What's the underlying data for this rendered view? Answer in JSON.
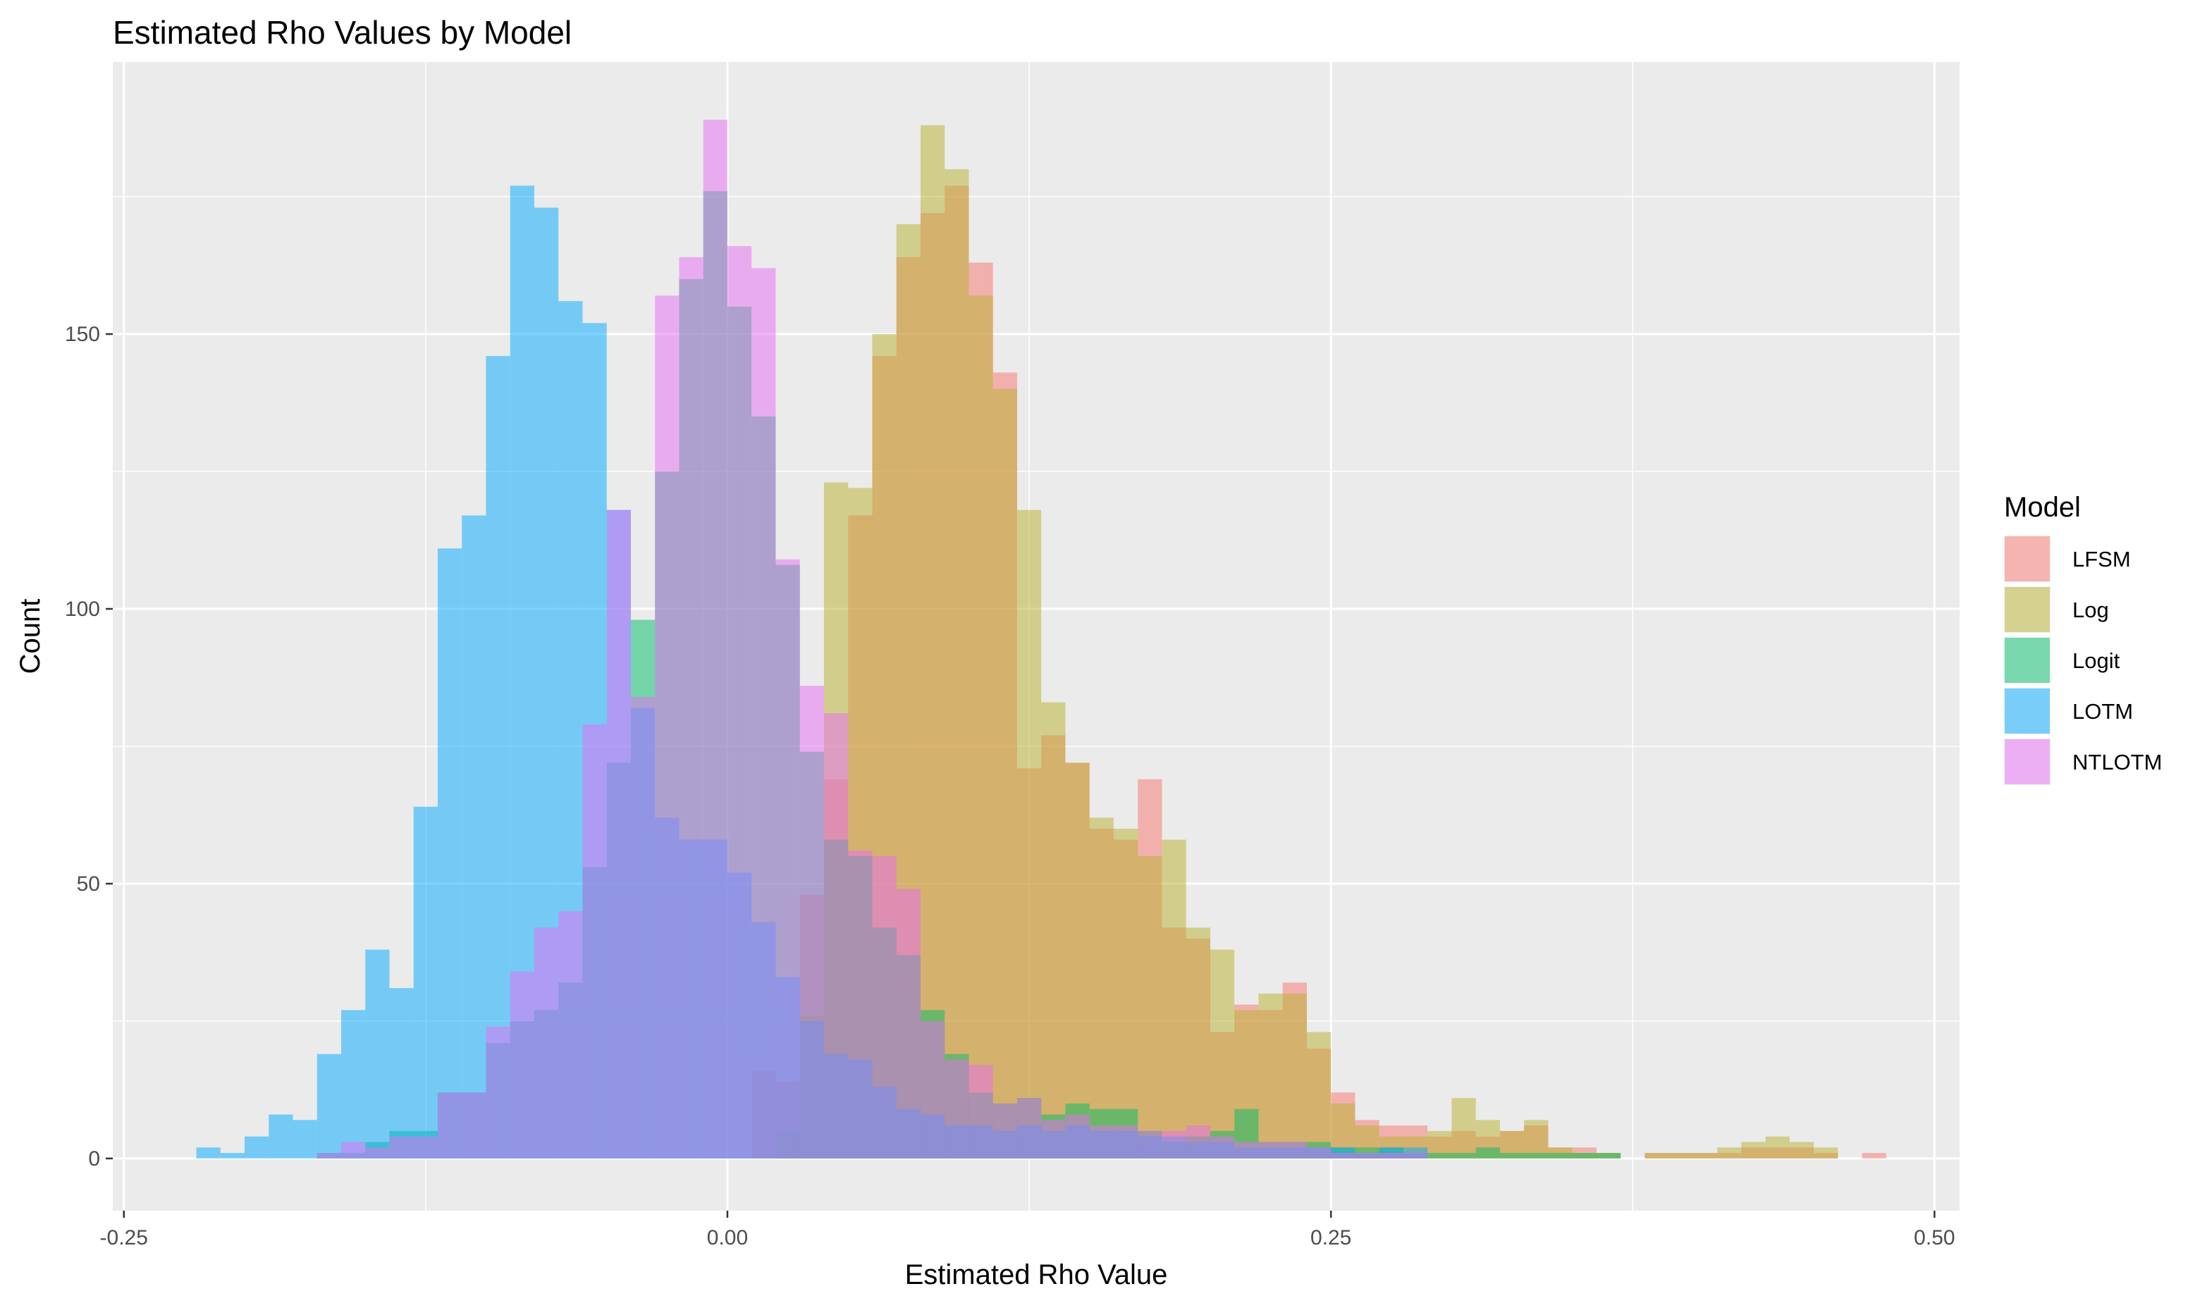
{
  "chart_data": {
    "type": "histogram",
    "title": "Estimated Rho Values by Model",
    "xlabel": "Estimated Rho Value",
    "ylabel": "Count",
    "xlim": [
      -0.2546,
      0.5104
    ],
    "ylim": [
      -9.5,
      199.5
    ],
    "x_ticks": [
      -0.25,
      0.0,
      0.25,
      0.5
    ],
    "x_tick_labels": [
      "-0.25",
      "0.00",
      "0.25",
      "0.50"
    ],
    "y_ticks": [
      0,
      50,
      100,
      150
    ],
    "y_tick_labels": [
      "0",
      "50",
      "100",
      "150"
    ],
    "bin_width": 0.01,
    "grid": true,
    "legend": {
      "title": "Model",
      "position": "right"
    },
    "series": [
      {
        "name": "LFSM",
        "color": "#F8766D",
        "bins": [
          [
            0.015,
            16
          ],
          [
            0.025,
            14
          ],
          [
            0.035,
            48
          ],
          [
            0.045,
            69
          ],
          [
            0.055,
            117
          ],
          [
            0.065,
            146
          ],
          [
            0.075,
            164
          ],
          [
            0.085,
            172
          ],
          [
            0.095,
            177
          ],
          [
            0.105,
            163
          ],
          [
            0.115,
            143
          ],
          [
            0.125,
            71
          ],
          [
            0.135,
            77
          ],
          [
            0.145,
            72
          ],
          [
            0.155,
            60
          ],
          [
            0.165,
            58
          ],
          [
            0.175,
            69
          ],
          [
            0.185,
            42
          ],
          [
            0.195,
            40
          ],
          [
            0.205,
            23
          ],
          [
            0.215,
            28
          ],
          [
            0.225,
            27
          ],
          [
            0.235,
            32
          ],
          [
            0.245,
            20
          ],
          [
            0.255,
            12
          ],
          [
            0.265,
            7
          ],
          [
            0.275,
            6
          ],
          [
            0.285,
            6
          ],
          [
            0.295,
            4
          ],
          [
            0.305,
            5
          ],
          [
            0.315,
            4
          ],
          [
            0.325,
            5
          ],
          [
            0.335,
            6
          ],
          [
            0.345,
            2
          ],
          [
            0.355,
            2
          ],
          [
            0.365,
            1
          ],
          [
            0.385,
            1
          ],
          [
            0.395,
            1
          ],
          [
            0.405,
            1
          ],
          [
            0.415,
            1
          ],
          [
            0.425,
            2
          ],
          [
            0.435,
            2
          ],
          [
            0.445,
            2
          ],
          [
            0.455,
            1
          ],
          [
            0.475,
            1
          ]
        ]
      },
      {
        "name": "Log",
        "color": "#B7B22E",
        "bins": [
          [
            0.025,
            5
          ],
          [
            0.035,
            26
          ],
          [
            0.045,
            123
          ],
          [
            0.055,
            122
          ],
          [
            0.065,
            150
          ],
          [
            0.075,
            170
          ],
          [
            0.085,
            188
          ],
          [
            0.095,
            180
          ],
          [
            0.105,
            157
          ],
          [
            0.115,
            140
          ],
          [
            0.125,
            118
          ],
          [
            0.135,
            83
          ],
          [
            0.145,
            72
          ],
          [
            0.155,
            62
          ],
          [
            0.165,
            60
          ],
          [
            0.175,
            55
          ],
          [
            0.185,
            58
          ],
          [
            0.195,
            42
          ],
          [
            0.205,
            38
          ],
          [
            0.215,
            27
          ],
          [
            0.225,
            30
          ],
          [
            0.235,
            30
          ],
          [
            0.245,
            23
          ],
          [
            0.255,
            10
          ],
          [
            0.265,
            6
          ],
          [
            0.275,
            4
          ],
          [
            0.285,
            4
          ],
          [
            0.295,
            5
          ],
          [
            0.305,
            11
          ],
          [
            0.315,
            7
          ],
          [
            0.325,
            5
          ],
          [
            0.335,
            7
          ],
          [
            0.345,
            2
          ],
          [
            0.355,
            1
          ],
          [
            0.365,
            1
          ],
          [
            0.385,
            1
          ],
          [
            0.395,
            1
          ],
          [
            0.405,
            1
          ],
          [
            0.415,
            2
          ],
          [
            0.425,
            3
          ],
          [
            0.435,
            4
          ],
          [
            0.445,
            3
          ],
          [
            0.455,
            2
          ]
        ]
      },
      {
        "name": "Logit",
        "color": "#00BE67",
        "bins": [
          [
            -0.165,
            1
          ],
          [
            -0.155,
            1
          ],
          [
            -0.145,
            3
          ],
          [
            -0.135,
            5
          ],
          [
            -0.125,
            5
          ],
          [
            -0.115,
            12
          ],
          [
            -0.105,
            12
          ],
          [
            -0.095,
            21
          ],
          [
            -0.085,
            25
          ],
          [
            -0.075,
            27
          ],
          [
            -0.065,
            32
          ],
          [
            -0.055,
            53
          ],
          [
            -0.045,
            72
          ],
          [
            -0.035,
            98
          ],
          [
            -0.025,
            125
          ],
          [
            -0.015,
            160
          ],
          [
            -0.005,
            176
          ],
          [
            0.005,
            155
          ],
          [
            0.015,
            135
          ],
          [
            0.025,
            108
          ],
          [
            0.035,
            74
          ],
          [
            0.045,
            58
          ],
          [
            0.055,
            55
          ],
          [
            0.065,
            42
          ],
          [
            0.075,
            37
          ],
          [
            0.085,
            27
          ],
          [
            0.095,
            19
          ],
          [
            0.105,
            12
          ],
          [
            0.115,
            10
          ],
          [
            0.125,
            11
          ],
          [
            0.135,
            8
          ],
          [
            0.145,
            10
          ],
          [
            0.155,
            9
          ],
          [
            0.165,
            9
          ],
          [
            0.175,
            5
          ],
          [
            0.185,
            3
          ],
          [
            0.195,
            4
          ],
          [
            0.205,
            5
          ],
          [
            0.215,
            9
          ],
          [
            0.225,
            3
          ],
          [
            0.235,
            3
          ],
          [
            0.245,
            3
          ],
          [
            0.255,
            2
          ],
          [
            0.265,
            2
          ],
          [
            0.275,
            2
          ],
          [
            0.285,
            1
          ],
          [
            0.295,
            1
          ],
          [
            0.305,
            1
          ],
          [
            0.315,
            2
          ],
          [
            0.325,
            1
          ],
          [
            0.335,
            1
          ],
          [
            0.345,
            1
          ],
          [
            0.355,
            1
          ],
          [
            0.365,
            1
          ]
        ]
      },
      {
        "name": "LOTM",
        "color": "#00A9FF",
        "bins": [
          [
            -0.215,
            2
          ],
          [
            -0.205,
            1
          ],
          [
            -0.195,
            4
          ],
          [
            -0.185,
            8
          ],
          [
            -0.175,
            7
          ],
          [
            -0.165,
            19
          ],
          [
            -0.155,
            27
          ],
          [
            -0.145,
            38
          ],
          [
            -0.135,
            31
          ],
          [
            -0.125,
            64
          ],
          [
            -0.115,
            111
          ],
          [
            -0.105,
            117
          ],
          [
            -0.095,
            146
          ],
          [
            -0.085,
            177
          ],
          [
            -0.075,
            173
          ],
          [
            -0.065,
            156
          ],
          [
            -0.055,
            152
          ],
          [
            -0.045,
            118
          ],
          [
            -0.035,
            82
          ],
          [
            -0.025,
            62
          ],
          [
            -0.015,
            58
          ],
          [
            -0.005,
            58
          ],
          [
            0.005,
            52
          ],
          [
            0.015,
            43
          ],
          [
            0.025,
            33
          ],
          [
            0.035,
            25
          ],
          [
            0.045,
            19
          ],
          [
            0.055,
            18
          ],
          [
            0.065,
            13
          ],
          [
            0.075,
            9
          ],
          [
            0.085,
            8
          ],
          [
            0.095,
            6
          ],
          [
            0.105,
            6
          ],
          [
            0.115,
            5
          ],
          [
            0.125,
            6
          ],
          [
            0.135,
            5
          ],
          [
            0.145,
            6
          ],
          [
            0.155,
            5
          ],
          [
            0.165,
            5
          ],
          [
            0.175,
            4
          ],
          [
            0.185,
            4
          ],
          [
            0.195,
            3
          ],
          [
            0.205,
            3
          ],
          [
            0.215,
            2
          ],
          [
            0.225,
            2
          ],
          [
            0.235,
            2
          ],
          [
            0.245,
            2
          ],
          [
            0.255,
            2
          ],
          [
            0.265,
            1
          ],
          [
            0.275,
            2
          ],
          [
            0.285,
            2
          ]
        ]
      },
      {
        "name": "NTLOTM",
        "color": "#E76BF3",
        "bins": [
          [
            -0.165,
            1
          ],
          [
            -0.155,
            3
          ],
          [
            -0.145,
            2
          ],
          [
            -0.135,
            4
          ],
          [
            -0.125,
            4
          ],
          [
            -0.115,
            12
          ],
          [
            -0.105,
            12
          ],
          [
            -0.095,
            24
          ],
          [
            -0.085,
            34
          ],
          [
            -0.075,
            42
          ],
          [
            -0.065,
            45
          ],
          [
            -0.055,
            79
          ],
          [
            -0.045,
            118
          ],
          [
            -0.035,
            84
          ],
          [
            -0.025,
            157
          ],
          [
            -0.015,
            164
          ],
          [
            -0.005,
            189
          ],
          [
            0.005,
            166
          ],
          [
            0.015,
            162
          ],
          [
            0.025,
            109
          ],
          [
            0.035,
            86
          ],
          [
            0.045,
            81
          ],
          [
            0.055,
            56
          ],
          [
            0.065,
            55
          ],
          [
            0.075,
            49
          ],
          [
            0.085,
            25
          ],
          [
            0.095,
            18
          ],
          [
            0.105,
            17
          ],
          [
            0.115,
            10
          ],
          [
            0.125,
            11
          ],
          [
            0.135,
            7
          ],
          [
            0.145,
            8
          ],
          [
            0.155,
            6
          ],
          [
            0.165,
            6
          ],
          [
            0.175,
            5
          ],
          [
            0.185,
            5
          ],
          [
            0.195,
            6
          ],
          [
            0.205,
            4
          ],
          [
            0.215,
            3
          ],
          [
            0.225,
            3
          ],
          [
            0.235,
            3
          ],
          [
            0.245,
            2
          ],
          [
            0.255,
            1
          ],
          [
            0.265,
            1
          ],
          [
            0.275,
            1
          ],
          [
            0.285,
            1
          ]
        ]
      }
    ]
  }
}
